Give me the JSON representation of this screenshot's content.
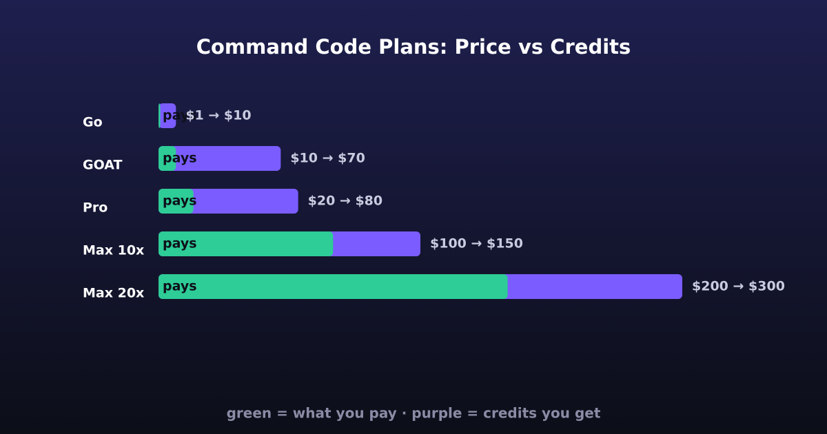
{
  "chart_data": {
    "type": "bar",
    "orientation": "horizontal",
    "title": "Command Code Plans: Price vs Credits",
    "categories": [
      "Go",
      "GOAT",
      "Pro",
      "Max 10x",
      "Max 20x"
    ],
    "series": [
      {
        "color": "#7b5cff",
        "values": [
          10,
          70,
          80,
          150,
          300
        ]
      },
      {
        "color": "#2ecc96",
        "values": [
          1,
          10,
          20,
          100,
          200
        ]
      }
    ],
    "bar_label": "pays",
    "value_labels": [
      "$1 → $10",
      "$10 → $70",
      "$20 → $80",
      "$100 → $150",
      "$200 → $300"
    ],
    "xlim": [
      0,
      300
    ],
    "note": "green = what you pay · purple = credits you get"
  }
}
